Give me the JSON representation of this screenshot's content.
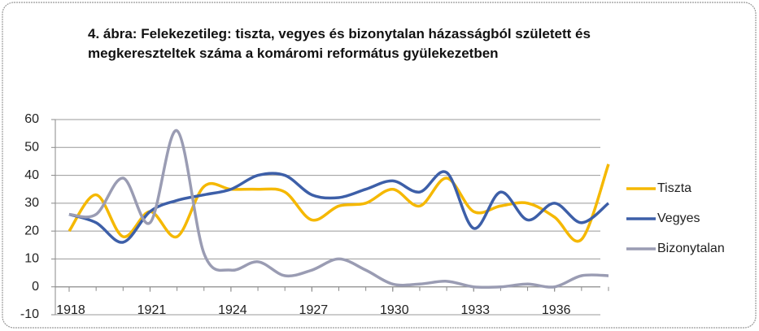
{
  "chart_data": {
    "type": "line",
    "title": "4. ábra: Felekezetileg: tiszta, vegyes és bizonytalan házasságból született és megkereszteltek száma a komáromi református gyülekezetben",
    "x": [
      1918,
      1919,
      1920,
      1921,
      1922,
      1923,
      1924,
      1925,
      1926,
      1927,
      1928,
      1929,
      1930,
      1931,
      1932,
      1933,
      1934,
      1935,
      1936,
      1937,
      1938
    ],
    "series": [
      {
        "name": "Tiszta",
        "color": "#f5b800",
        "values": [
          20,
          33,
          18,
          27,
          18,
          36,
          35,
          35,
          34,
          24,
          29,
          30,
          35,
          29,
          39,
          27,
          29,
          30,
          25,
          17,
          44
        ]
      },
      {
        "name": "Vegyes",
        "color": "#3d5fa8",
        "values": [
          26,
          23,
          16,
          27,
          31,
          33,
          35,
          40,
          40,
          33,
          32,
          35,
          38,
          34,
          41,
          21,
          34,
          24,
          30,
          23,
          30
        ]
      },
      {
        "name": "Bizonytalan",
        "color": "#9a9cb3",
        "values": [
          26,
          26,
          39,
          23,
          56,
          12,
          6,
          9,
          4,
          6,
          10,
          6,
          1,
          1,
          2,
          0,
          0,
          1,
          0,
          4,
          4
        ]
      }
    ],
    "xlim": [
      1918,
      1938
    ],
    "xticks": [
      1918,
      1921,
      1924,
      1927,
      1930,
      1933,
      1936
    ],
    "ylim": [
      -10,
      60
    ],
    "yticks": [
      -10,
      0,
      10,
      20,
      30,
      40,
      50,
      60
    ],
    "grid": true,
    "legend": "right"
  }
}
